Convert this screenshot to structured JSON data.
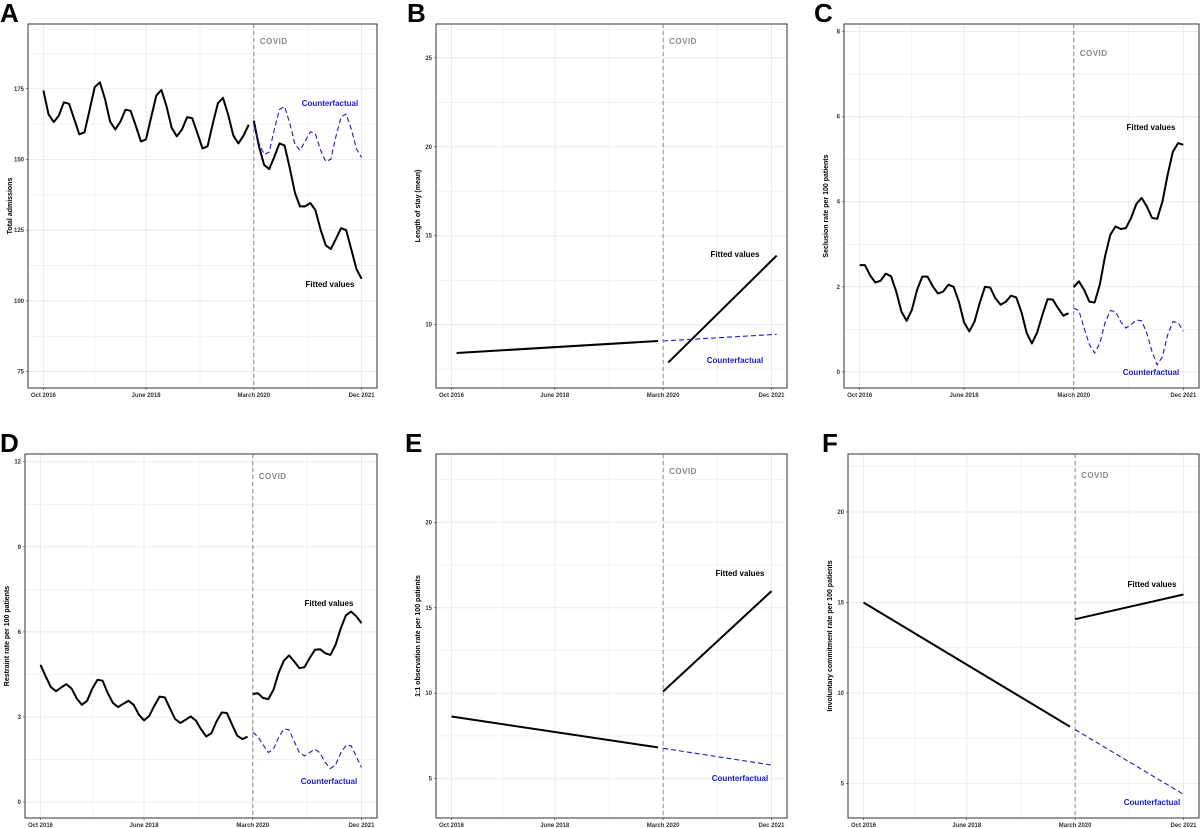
{
  "chart_data": [
    {
      "panel": "A",
      "type": "line",
      "ylabel": "Total admissions",
      "yticks": [
        75,
        100,
        125,
        150,
        175
      ],
      "ylim": [
        69.2,
        197.9
      ],
      "xticks": [
        [
          "2016-10",
          "Oct 2016"
        ],
        [
          "2018-06",
          "June 2018"
        ],
        [
          "2020-03",
          "March 2020"
        ],
        [
          "2021-12",
          "Dec 2021"
        ]
      ],
      "xlim": [
        "2016-07",
        "2022-03"
      ],
      "grid": true,
      "intervention": {
        "date": "2020-03",
        "label": "COVID"
      },
      "labels": {
        "fitted": "Fitted values",
        "counterfactual": "Counterfactual"
      },
      "series": [
        {
          "name": "Fitted values",
          "style": "solid",
          "start": "2016-10",
          "values": [
            174.4,
            166,
            163.2,
            165.5,
            170.2,
            169.7,
            164.3,
            158.9,
            159.6,
            167.5,
            175.6,
            177.3,
            171.4,
            163.4,
            160.6,
            163.4,
            167.6,
            167.2,
            161.9,
            156.4,
            157.1,
            165,
            172.6,
            174.6,
            168.7,
            161.2,
            158.2,
            160.6,
            165,
            164.6,
            159.3,
            153.9,
            154.7,
            162.7,
            169.9,
            171.8,
            165.8,
            158.5,
            155.7,
            158.5,
            162.3
          ]
        },
        {
          "name": "Fitted values",
          "style": "solid",
          "start": "2020-03",
          "values": [
            163.7,
            154.6,
            148.1,
            146.6,
            151,
            155.7,
            154.9,
            146.9,
            138.3,
            133.4,
            133.4,
            134.6,
            132.1,
            125.3,
            119.7,
            118.3,
            121.9,
            125.7,
            125,
            118.2,
            111.2,
            107.8
          ]
        },
        {
          "name": "Counterfactual",
          "style": "dashed",
          "start": "2020-03",
          "values": [
            162.1,
            155.8,
            151.8,
            152.6,
            160.7,
            167.7,
            168.7,
            162.8,
            155.5,
            153.2,
            156.4,
            159.8,
            159,
            153.4,
            149.3,
            150.1,
            158.1,
            165,
            166.1,
            160.7,
            153.7,
            150.7
          ]
        }
      ]
    },
    {
      "panel": "B",
      "type": "line",
      "ylabel": "Length of stay (mean)",
      "yticks": [
        10,
        15,
        20,
        25
      ],
      "ylim": [
        6.44,
        26.9
      ],
      "xticks": [
        [
          "2016-10",
          "Oct 2016"
        ],
        [
          "2018-06",
          "June 2018"
        ],
        [
          "2020-03",
          "March 2020"
        ],
        [
          "2021-12",
          "Dec 2021"
        ]
      ],
      "xlim": [
        "2016-07",
        "2022-03"
      ],
      "grid": true,
      "intervention": {
        "date": "2020-03",
        "label": "COVID"
      },
      "labels": {
        "fitted": "Fitted values",
        "counterfactual": "Counterfactual"
      },
      "series": [
        {
          "name": "Fitted values",
          "style": "solid",
          "points": [
            [
              "2016-11",
              8.41
            ],
            [
              "2020-02",
              9.08
            ]
          ]
        },
        {
          "name": "Fitted values",
          "style": "solid",
          "points": [
            [
              "2020-04",
              7.88
            ],
            [
              "2022-01",
              13.88
            ]
          ]
        },
        {
          "name": "Counterfactual",
          "style": "dashed",
          "points": [
            [
              "2020-03",
              9.08
            ],
            [
              "2022-01",
              9.46
            ]
          ]
        }
      ]
    },
    {
      "panel": "C",
      "type": "line",
      "ylabel": "Seclusion rate per 100 patients",
      "yticks": [
        0,
        2,
        4,
        6,
        8
      ],
      "ylim": [
        -0.38,
        8.18
      ],
      "xticks": [
        [
          "2016-10",
          "Oct 2016"
        ],
        [
          "2018-06",
          "June 2018"
        ],
        [
          "2020-03",
          "March 2020"
        ],
        [
          "2021-12",
          "Dec 2021"
        ]
      ],
      "xlim": [
        "2016-07",
        "2022-03"
      ],
      "grid": true,
      "intervention": {
        "date": "2020-03",
        "label": "COVID"
      },
      "labels": {
        "fitted": "Fitted values",
        "counterfactual": "Counterfactual"
      },
      "series": [
        {
          "name": "Fitted values",
          "style": "solid",
          "start": "2016-10",
          "values": [
            2.51,
            2.51,
            2.27,
            2.1,
            2.14,
            2.31,
            2.25,
            1.89,
            1.42,
            1.2,
            1.46,
            1.93,
            2.24,
            2.24,
            2.01,
            1.84,
            1.89,
            2.05,
            2.0,
            1.65,
            1.16,
            0.95,
            1.18,
            1.62,
            2.0,
            1.98,
            1.73,
            1.58,
            1.65,
            1.79,
            1.75,
            1.4,
            0.91,
            0.67,
            0.93,
            1.34,
            1.71,
            1.7,
            1.5,
            1.32,
            1.38
          ]
        },
        {
          "name": "Fitted values",
          "style": "solid",
          "start": "2020-03",
          "values": [
            1.99,
            2.13,
            1.93,
            1.65,
            1.63,
            2.05,
            2.71,
            3.22,
            3.42,
            3.36,
            3.38,
            3.62,
            3.95,
            4.09,
            3.89,
            3.62,
            3.6,
            4.01,
            4.64,
            5.18,
            5.38,
            5.34
          ]
        },
        {
          "name": "Counterfactual",
          "style": "dashed",
          "start": "2020-03",
          "values": [
            1.5,
            1.44,
            1.03,
            0.64,
            0.44,
            0.67,
            1.15,
            1.44,
            1.42,
            1.18,
            1.03,
            1.11,
            1.22,
            1.2,
            0.91,
            0.48,
            0.16,
            0.36,
            0.87,
            1.18,
            1.16,
            0.95
          ]
        }
      ]
    },
    {
      "panel": "D",
      "type": "line",
      "ylabel": "Restraint rate per 100 patients",
      "yticks": [
        0,
        3,
        6,
        9,
        12
      ],
      "ylim": [
        -0.56,
        12.27
      ],
      "xticks": [
        [
          "2016-10",
          "Oct 2016"
        ],
        [
          "2018-06",
          "June 2018"
        ],
        [
          "2020-03",
          "March 2020"
        ],
        [
          "2021-12",
          "Dec 2021"
        ]
      ],
      "xlim": [
        "2016-07",
        "2022-03"
      ],
      "grid": true,
      "intervention": {
        "date": "2020-03",
        "label": "COVID"
      },
      "labels": {
        "fitted": "Fitted values",
        "counterfactual": "Counterfactual"
      },
      "series": [
        {
          "name": "Fitted values",
          "style": "solid",
          "start": "2016-10",
          "values": [
            4.84,
            4.43,
            4.05,
            3.91,
            4.04,
            4.16,
            4.0,
            3.65,
            3.43,
            3.57,
            4.0,
            4.31,
            4.28,
            3.84,
            3.49,
            3.35,
            3.47,
            3.57,
            3.43,
            3.08,
            2.88,
            3.04,
            3.4,
            3.72,
            3.69,
            3.31,
            2.93,
            2.79,
            2.9,
            3.02,
            2.88,
            2.57,
            2.31,
            2.43,
            2.84,
            3.16,
            3.14,
            2.73,
            2.34,
            2.22,
            2.31
          ]
        },
        {
          "name": "Fitted values",
          "style": "solid",
          "start": "2020-03",
          "values": [
            3.81,
            3.84,
            3.67,
            3.63,
            3.96,
            4.55,
            4.98,
            5.17,
            4.96,
            4.72,
            4.76,
            5.08,
            5.37,
            5.39,
            5.25,
            5.19,
            5.55,
            6.13,
            6.58,
            6.72,
            6.55,
            6.31
          ]
        },
        {
          "name": "Counterfactual",
          "style": "dashed",
          "start": "2020-03",
          "values": [
            2.46,
            2.31,
            2.02,
            1.75,
            1.87,
            2.28,
            2.58,
            2.55,
            2.14,
            1.75,
            1.63,
            1.75,
            1.87,
            1.73,
            1.4,
            1.18,
            1.32,
            1.73,
            2.0,
            1.99,
            1.61,
            1.22
          ]
        }
      ]
    },
    {
      "panel": "E",
      "type": "line",
      "ylabel": "1:1 observation rate per 100 patients",
      "yticks": [
        5,
        10,
        15,
        20
      ],
      "ylim": [
        2.7,
        24.0
      ],
      "xticks": [
        [
          "2016-10",
          "Oct 2016"
        ],
        [
          "2018-06",
          "June 2018"
        ],
        [
          "2020-03",
          "March 2020"
        ],
        [
          "2021-12",
          "Dec 2021"
        ]
      ],
      "xlim": [
        "2016-07",
        "2022-03"
      ],
      "grid": true,
      "intervention": {
        "date": "2020-03",
        "label": "COVID"
      },
      "labels": {
        "fitted": "Fitted values",
        "counterfactual": "Counterfactual"
      },
      "series": [
        {
          "name": "Fitted values",
          "style": "solid",
          "points": [
            [
              "2016-10",
              8.64
            ],
            [
              "2020-02",
              6.83
            ]
          ]
        },
        {
          "name": "Fitted values",
          "style": "solid",
          "points": [
            [
              "2020-03",
              10.1
            ],
            [
              "2021-12",
              15.98
            ]
          ]
        },
        {
          "name": "Counterfactual",
          "style": "dashed",
          "points": [
            [
              "2020-03",
              6.78
            ],
            [
              "2021-12",
              5.8
            ]
          ]
        }
      ]
    },
    {
      "panel": "F",
      "type": "line",
      "ylabel": "Involuntary commitment rate per 100 patients",
      "yticks": [
        5,
        10,
        15,
        20
      ],
      "ylim": [
        3.1,
        23.2
      ],
      "xticks": [
        [
          "2016-10",
          "Oct 2016"
        ],
        [
          "2018-06",
          "June 2018"
        ],
        [
          "2020-03",
          "March 2020"
        ],
        [
          "2021-12",
          "Dec 2021"
        ]
      ],
      "xlim": [
        "2016-07",
        "2022-03"
      ],
      "grid": true,
      "intervention": {
        "date": "2020-03",
        "label": "COVID"
      },
      "labels": {
        "fitted": "Fitted values",
        "counterfactual": "Counterfactual"
      },
      "series": [
        {
          "name": "Fitted values",
          "style": "solid",
          "points": [
            [
              "2016-10",
              15.0
            ],
            [
              "2020-02",
              8.14
            ]
          ]
        },
        {
          "name": "Fitted values",
          "style": "solid",
          "points": [
            [
              "2020-03",
              14.08
            ],
            [
              "2021-12",
              15.44
            ]
          ]
        },
        {
          "name": "Counterfactual",
          "style": "dashed",
          "points": [
            [
              "2020-03",
              7.98
            ],
            [
              "2021-12",
              4.41
            ]
          ]
        }
      ]
    }
  ],
  "colors": {
    "fitted": "#000000",
    "counterfactual": "#1a1acc",
    "intervention_line": "#888888",
    "grid": "#ebebeb"
  }
}
